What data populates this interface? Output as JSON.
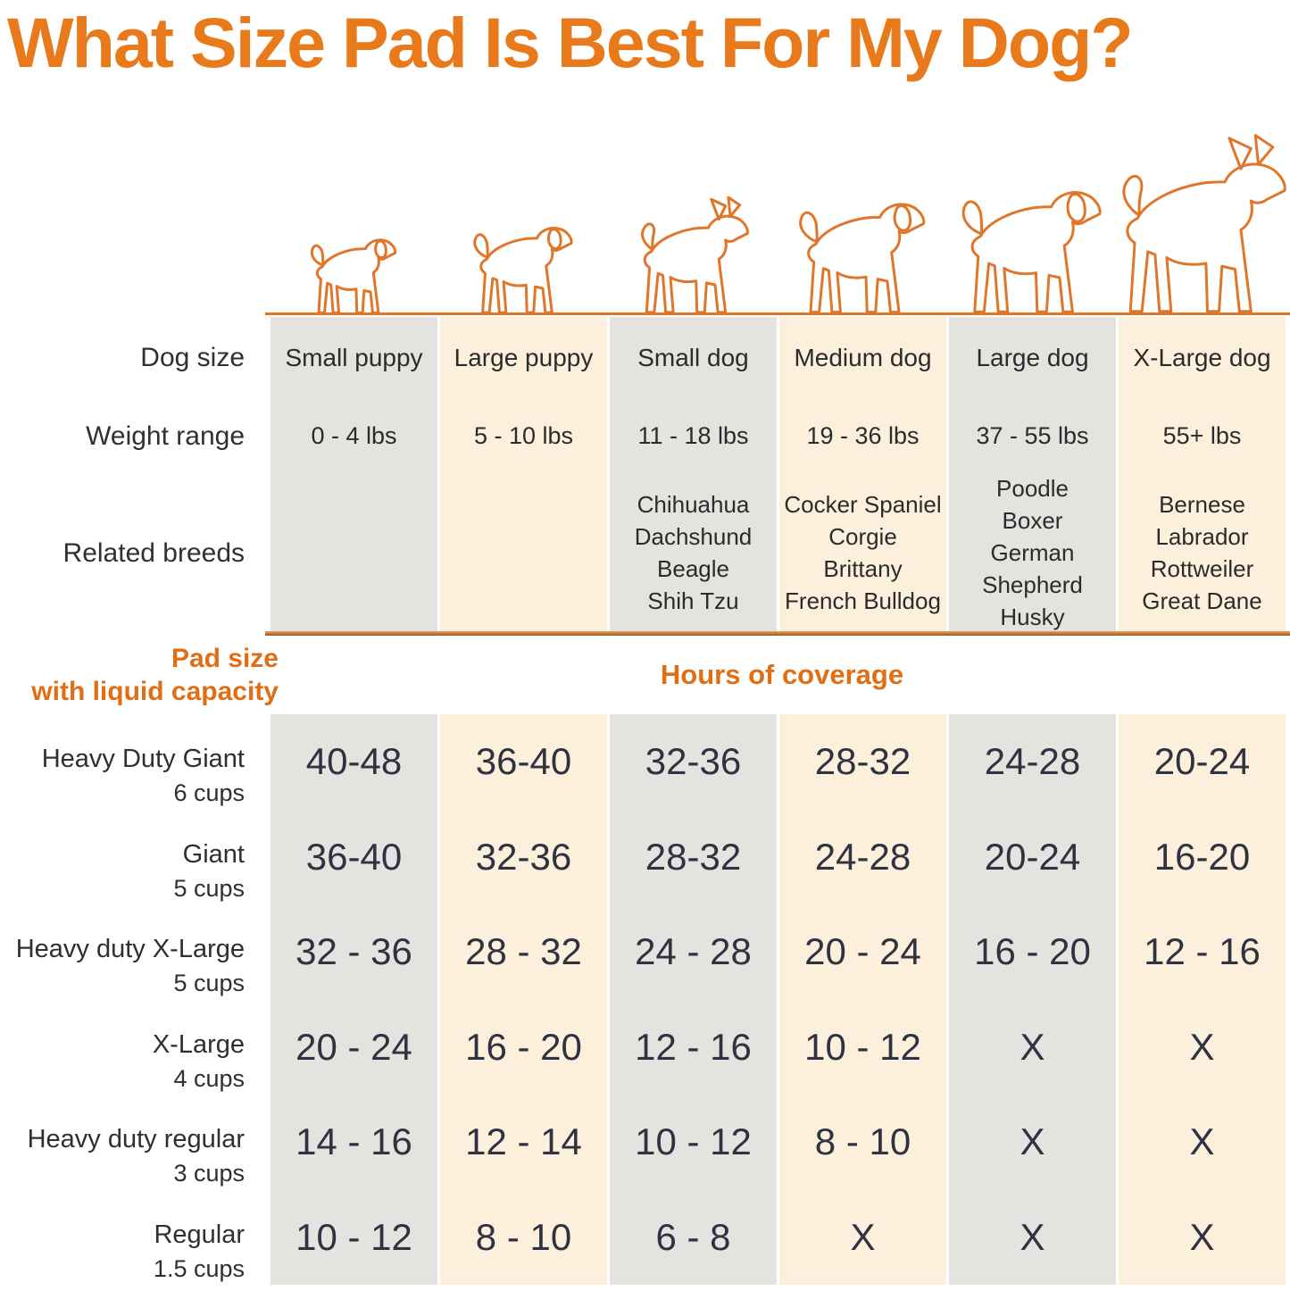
{
  "title": "What Size Pad Is Best For My Dog?",
  "section_labels": {
    "dog_size": "Dog size",
    "weight_range": "Weight range",
    "related_breeds": "Related breeds",
    "pad_size_line1": "Pad size",
    "pad_size_line2": "with liquid capacity",
    "hours_header": "Hours of coverage"
  },
  "colors": {
    "accent_orange": "#E87A1C",
    "header_orange": "#E06E14",
    "dog_outline_orange": "#E0762A",
    "divider_brown": "#A85318",
    "column_gray": "#E5E3E0",
    "column_cream": "#FCF0DC",
    "text_dark": "#2F3240"
  },
  "chart_data": {
    "type": "table",
    "title": "What Size Pad Is Best For My Dog?",
    "columns": [
      {
        "label": "Small puppy",
        "weight": "0 - 4 lbs",
        "breeds": [],
        "icon": "small-puppy-icon"
      },
      {
        "label": "Large puppy",
        "weight": "5 - 10 lbs",
        "breeds": [],
        "icon": "large-puppy-icon"
      },
      {
        "label": "Small dog",
        "weight": "11 - 18 lbs",
        "breeds": [
          "Chihuahua",
          "Dachshund",
          "Beagle",
          "Shih Tzu"
        ],
        "icon": "small-dog-icon"
      },
      {
        "label": "Medium dog",
        "weight": "19 - 36 lbs",
        "breeds": [
          "Cocker Spaniel",
          "Corgie",
          "Brittany",
          "French Bulldog"
        ],
        "icon": "medium-dog-icon"
      },
      {
        "label": "Large dog",
        "weight": "37 - 55 lbs",
        "breeds": [
          "Poodle",
          "Boxer",
          "German Shepherd",
          "Husky"
        ],
        "icon": "large-dog-icon"
      },
      {
        "label": "X-Large dog",
        "weight": "55+ lbs",
        "breeds": [
          "Bernese",
          "Labrador",
          "Rottweiler",
          "Great Dane"
        ],
        "icon": "x-large-dog-icon"
      }
    ],
    "rows": [
      {
        "pad": "Heavy Duty Giant",
        "capacity": "6 cups",
        "hours": [
          "40-48",
          "36-40",
          "32-36",
          "28-32",
          "24-28",
          "20-24"
        ]
      },
      {
        "pad": "Giant",
        "capacity": "5 cups",
        "hours": [
          "36-40",
          "32-36",
          "28-32",
          "24-28",
          "20-24",
          "16-20"
        ]
      },
      {
        "pad": "Heavy duty X-Large",
        "capacity": "5 cups",
        "hours": [
          "32 - 36",
          "28 - 32",
          "24 - 28",
          "20 - 24",
          "16 - 20",
          "12 - 16"
        ]
      },
      {
        "pad": "X-Large",
        "capacity": "4 cups",
        "hours": [
          "20 - 24",
          "16 - 20",
          "12 - 16",
          "10 - 12",
          "X",
          "X"
        ]
      },
      {
        "pad": "Heavy duty regular",
        "capacity": "3 cups",
        "hours": [
          "14 - 16",
          "12 - 14",
          "10 - 12",
          "8 - 10",
          "X",
          "X"
        ]
      },
      {
        "pad": "Regular",
        "capacity": "1.5 cups",
        "hours": [
          "10 - 12",
          "8 - 10",
          "6 - 8",
          "X",
          "X",
          "X"
        ]
      }
    ]
  }
}
